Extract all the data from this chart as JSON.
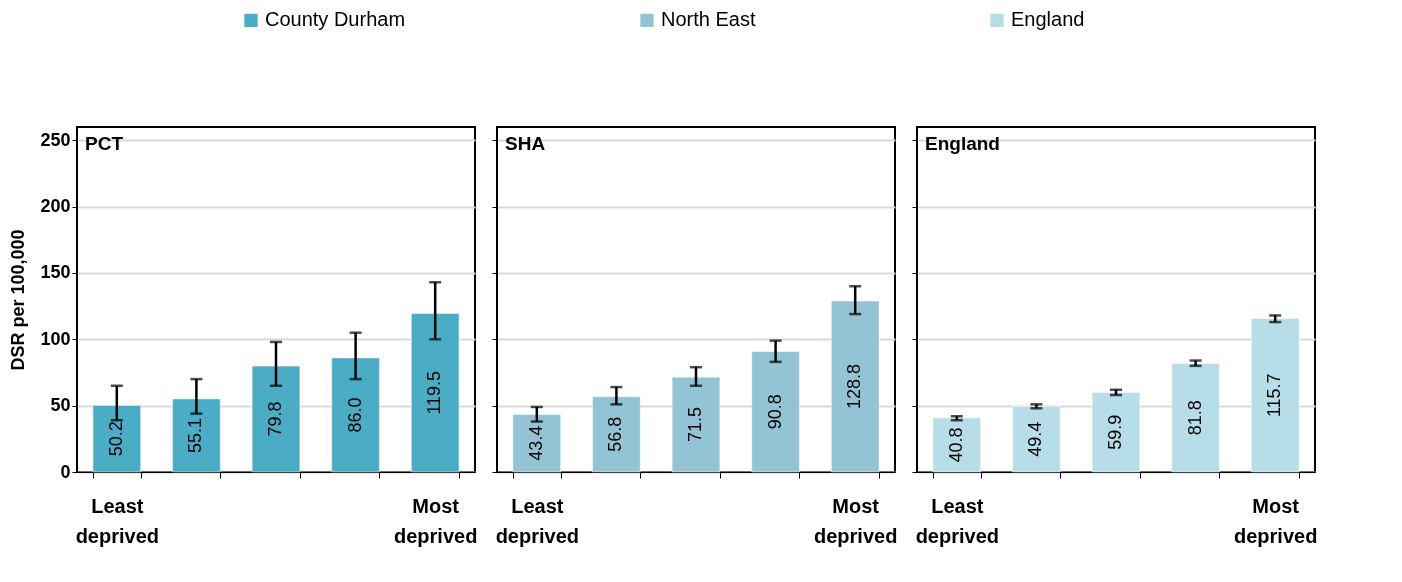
{
  "chart_data": [
    {
      "type": "bar",
      "title": "PCT",
      "ylabel": "DSR per 100,000",
      "categories": [
        "Least deprived",
        null,
        null,
        null,
        "Most deprived"
      ],
      "ylim": [
        0,
        260
      ],
      "yticks": [
        0,
        50,
        100,
        150,
        200,
        250
      ],
      "grid": "y",
      "legend": "top",
      "series": [
        {
          "name": "County Durham",
          "color": "#4bacc6",
          "values": [
            50.2,
            55.1,
            79.8,
            86.0,
            119.5
          ],
          "value_labels": [
            "50.2",
            "55.1",
            "79.8",
            "86.0",
            "119.5"
          ],
          "errors": [
            [
              39,
              65
            ],
            [
              44,
              70
            ],
            [
              65,
              98
            ],
            [
              70,
              105
            ],
            [
              100,
              143
            ]
          ]
        }
      ]
    },
    {
      "type": "bar",
      "title": "SHA",
      "categories": [
        "Least deprived",
        null,
        null,
        null,
        "Most deprived"
      ],
      "ylim": [
        0,
        260
      ],
      "yticks": [
        0,
        50,
        100,
        150,
        200,
        250
      ],
      "grid": "y",
      "tick_labels": "x",
      "series": [
        {
          "name": "North East",
          "color": "#93c4d6",
          "values": [
            43.4,
            56.8,
            71.5,
            90.8,
            128.8
          ],
          "value_labels": [
            "43.4",
            "56.8",
            "71.5",
            "90.8",
            "128.8"
          ],
          "errors": [
            [
              38,
              49
            ],
            [
              51,
              64
            ],
            [
              65,
              79
            ],
            [
              83,
              99
            ],
            [
              119,
              140
            ]
          ]
        }
      ]
    },
    {
      "type": "bar",
      "title": "England",
      "categories": [
        "Least deprived",
        null,
        null,
        null,
        "Most deprived"
      ],
      "ylim": [
        0,
        260
      ],
      "yticks": [
        0,
        50,
        100,
        150,
        200,
        250
      ],
      "grid": "y",
      "tick_labels": "x",
      "series": [
        {
          "name": "England",
          "color": "#b7dde8",
          "values": [
            40.8,
            49.4,
            59.9,
            81.8,
            115.7
          ],
          "value_labels": [
            "40.8",
            "49.4",
            "59.9",
            "81.8",
            "115.7"
          ],
          "errors": [
            [
              39,
              42
            ],
            [
              48,
              51
            ],
            [
              58,
              62
            ],
            [
              80,
              84
            ],
            [
              113,
              118
            ]
          ]
        }
      ]
    }
  ]
}
